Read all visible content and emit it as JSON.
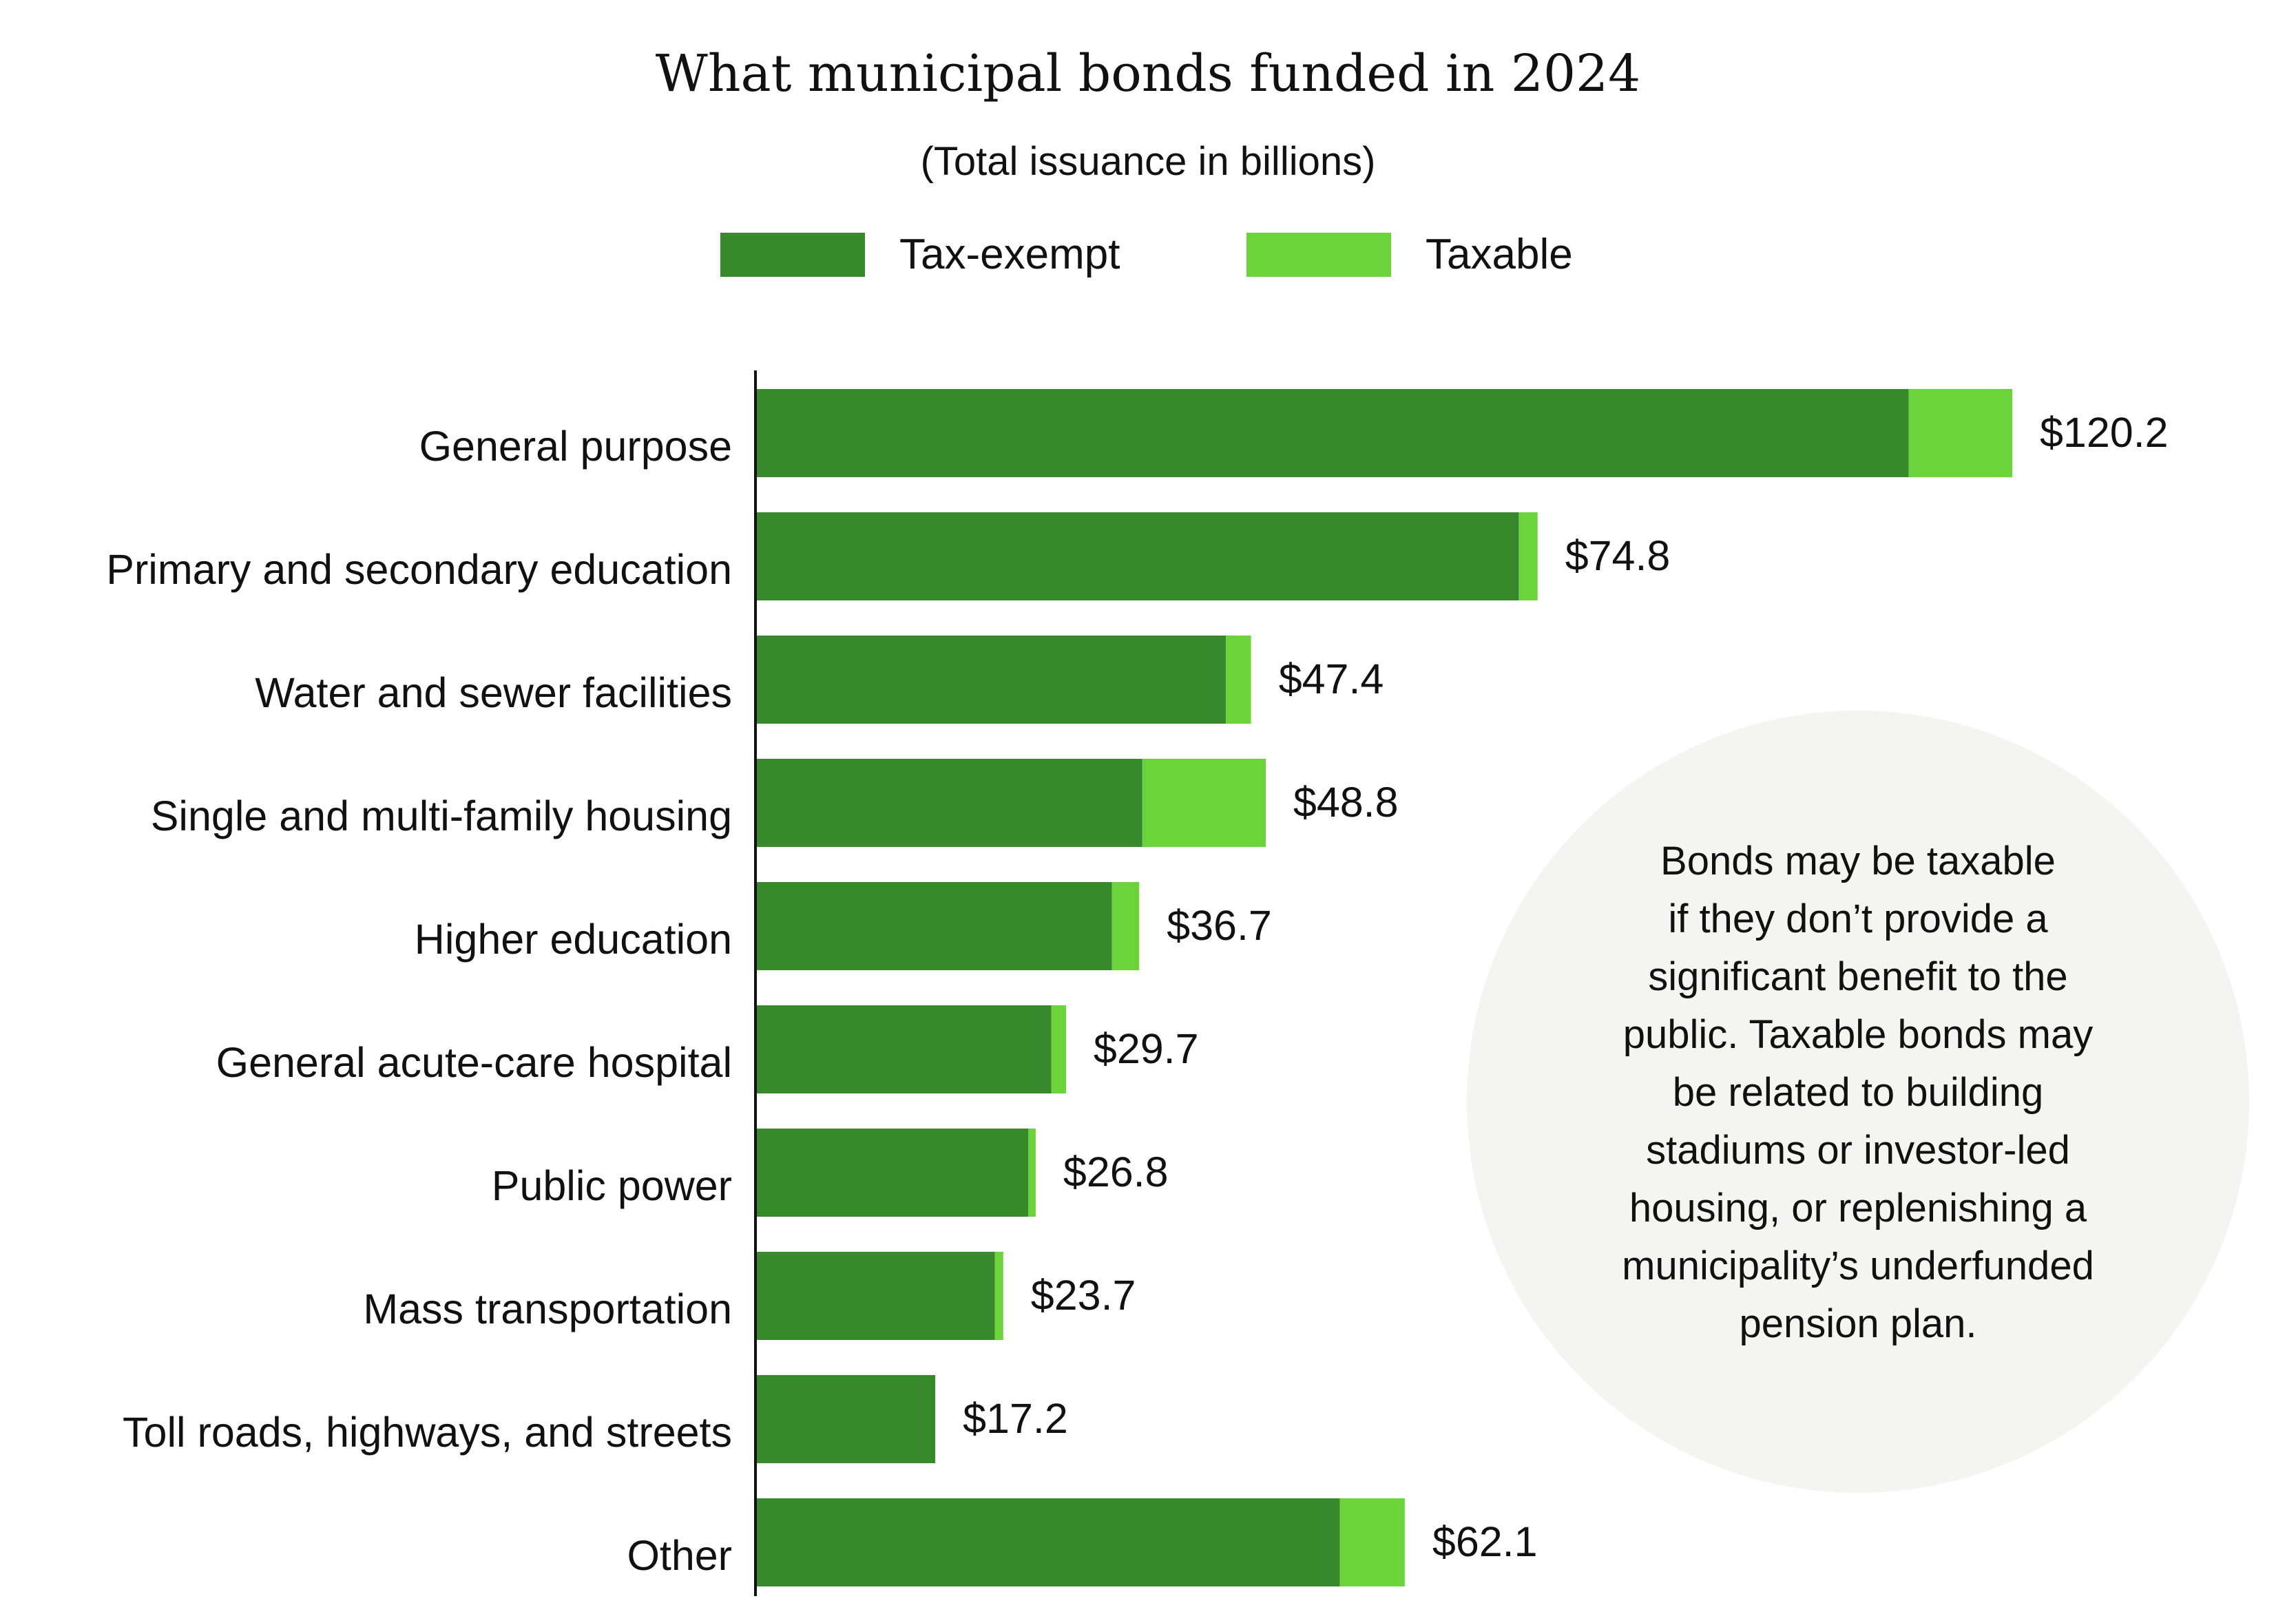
{
  "colors": {
    "tax_exempt": "#38892b",
    "taxable": "#6bd43b",
    "axis": "#111111",
    "note_circle": "#f4f4f2"
  },
  "chart_data": {
    "type": "bar",
    "orientation": "horizontal",
    "stacked": true,
    "title": "What municipal bonds funded in 2024",
    "subtitle": "(Total issuance in billions)",
    "legend_position": "top",
    "grid": false,
    "xlim": [
      0,
      120.2
    ],
    "categories": [
      "General purpose",
      "Primary and secondary education",
      "Water and sewer facilities",
      "Single and multi-family housing",
      "Higher education",
      "General acute-care hospital",
      "Public power",
      "Mass transportation",
      "Toll roads, highways, and streets",
      "Other"
    ],
    "series": [
      {
        "name": "Tax-exempt",
        "values": [
          110.3,
          73.0,
          45.0,
          37.0,
          34.1,
          28.3,
          26.1,
          22.9,
          17.2,
          55.9
        ]
      },
      {
        "name": "Taxable",
        "values": [
          9.9,
          1.8,
          2.4,
          11.8,
          2.6,
          1.4,
          0.7,
          0.8,
          0.0,
          6.2
        ]
      }
    ],
    "totals": [
      120.2,
      74.8,
      47.4,
      48.8,
      36.7,
      29.7,
      26.8,
      23.7,
      17.2,
      62.1
    ],
    "total_labels": [
      "$120.2",
      "$74.8",
      "$47.4",
      "$48.8",
      "$36.7",
      "$29.7",
      "$26.8",
      "$23.7",
      "$17.2",
      "$62.1"
    ],
    "annotation": [
      "Bonds may be taxable",
      "if they don’t provide a",
      "significant benefit to the",
      "public. Taxable bonds may",
      "be related to building",
      "stadiums or investor-led",
      "housing, or replenishing a",
      "municipality’s underfunded",
      "pension plan."
    ]
  }
}
